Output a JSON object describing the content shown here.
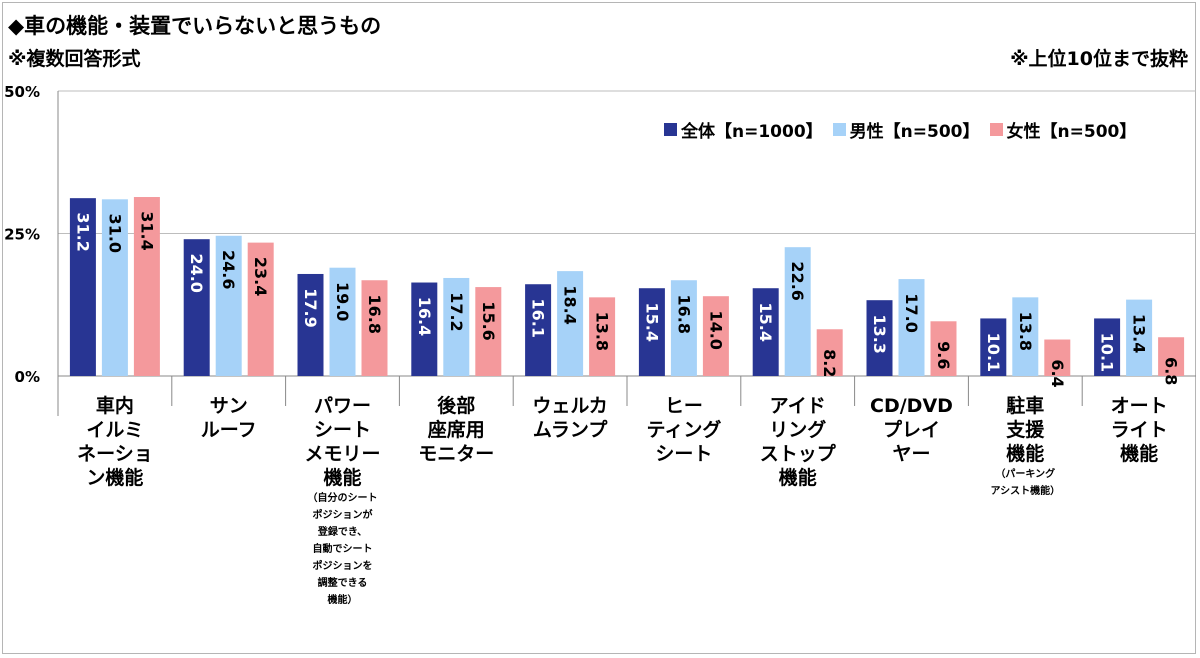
{
  "title": "◆車の機能・装置でいらないと思うもの",
  "subtitle": "※複数回答形式",
  "note": "※上位10位まで抜粋",
  "colors": {
    "all": "#283593",
    "male": "#a6d2f8",
    "female": "#f4999c"
  },
  "chart_data": {
    "type": "bar",
    "categories": [
      "車内\nイルミ\nネーショ\nン機能",
      "サン\nルーフ",
      "パワー\nシート\nメモリー\n機能",
      "後部\n座席用\nモニター",
      "ウェルカ\nムランプ",
      "ヒー\nティング\nシート",
      "アイド\nリング\nストップ\n機能",
      "CD/DVD\nプレイ\nヤー",
      "駐車\n支援\n機能",
      "オート\nライト\n機能"
    ],
    "category_notes": [
      "",
      "",
      "（自分のシート\nポジションが\n登録でき、\n自動でシート\nポジションを\n調整できる\n機能）",
      "",
      "",
      "",
      "",
      "",
      "（パーキング\nアシスト機能）",
      ""
    ],
    "series": [
      {
        "name": "全体【n=1000】",
        "values": [
          31.2,
          24.0,
          17.9,
          16.4,
          16.1,
          15.4,
          15.4,
          13.3,
          10.1,
          10.1
        ],
        "labels": [
          "31.2",
          "24.0",
          "17.9",
          "16.4",
          "16.1",
          "15.4",
          "15.4",
          "13.3",
          "10.1",
          "10.1"
        ]
      },
      {
        "name": "男性【n=500】",
        "values": [
          31.0,
          24.6,
          19.0,
          17.2,
          18.4,
          16.8,
          22.6,
          17.0,
          13.8,
          13.4
        ],
        "labels": [
          "31.0",
          "24.6",
          "19.0",
          "17.2",
          "18.4",
          "16.8",
          "22.6",
          "17.0",
          "13.8",
          "13.4"
        ]
      },
      {
        "name": "女性【n=500】",
        "values": [
          31.4,
          23.4,
          16.8,
          15.6,
          13.8,
          14.0,
          8.2,
          9.6,
          6.4,
          6.8
        ],
        "labels": [
          "31.4",
          "23.4",
          "16.8",
          "15.6",
          "13.8",
          "14.0",
          "8.2",
          "9.6",
          "6.4",
          "6.8"
        ]
      }
    ],
    "y_ticks": [
      "0%",
      "25%",
      "50%"
    ],
    "ylim": [
      0,
      50
    ],
    "grid": true,
    "legend_position": "top-right"
  }
}
